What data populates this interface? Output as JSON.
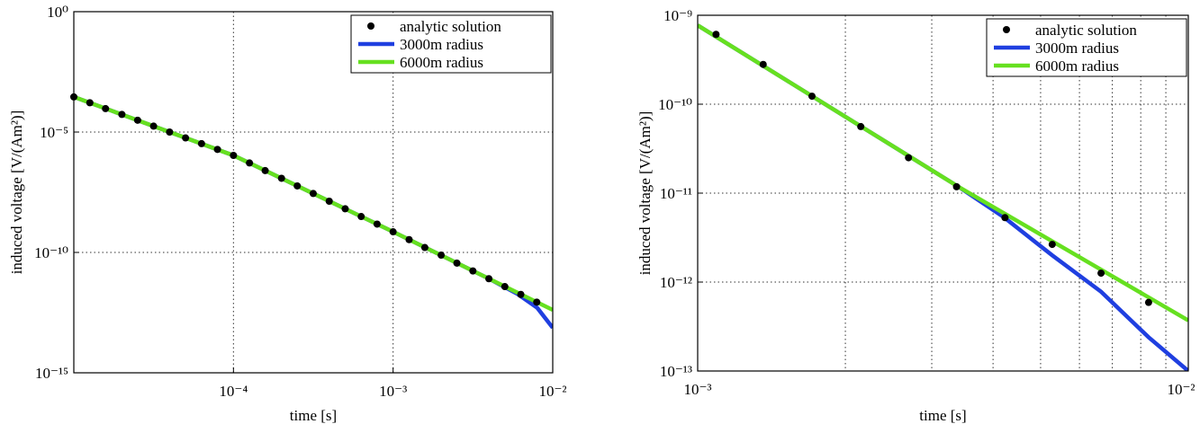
{
  "chart_data": [
    {
      "type": "line",
      "xlabel": "time [s]",
      "ylabel": "induced voltage [V/(Am²)]",
      "log_x": true,
      "log_y": true,
      "grid": true,
      "legend": "upper right",
      "xlim": [
        1e-05,
        0.01
      ],
      "xticks": [
        {
          "value": 0.0001,
          "label": "10⁻⁴"
        },
        {
          "value": 0.001,
          "label": "10⁻³"
        },
        {
          "value": 0.01,
          "label": "10⁻²"
        }
      ],
      "ylim": [
        1e-15,
        1
      ],
      "yticks": [
        {
          "value": 1e-15,
          "label": "10⁻¹⁵"
        },
        {
          "value": 1e-10,
          "label": "10⁻¹⁰"
        },
        {
          "value": 1e-05,
          "label": "10⁻⁵"
        },
        {
          "value": 1,
          "label": "10⁰"
        }
      ],
      "series": [
        {
          "name": "analytic solution",
          "color": "#000000",
          "style": "markers",
          "x": [
            1e-05,
            1.26e-05,
            1.58e-05,
            2e-05,
            2.51e-05,
            3.16e-05,
            3.98e-05,
            5.01e-05,
            6.31e-05,
            7.94e-05,
            0.0001,
            0.000126,
            0.000158,
            0.0002,
            0.000251,
            0.000316,
            0.000398,
            0.000501,
            0.000631,
            0.000794,
            0.001,
            0.00126,
            0.00158,
            0.002,
            0.00251,
            0.00316,
            0.00398,
            0.00501,
            0.00631,
            0.00794
          ],
          "values": [
            0.000288,
            0.000165,
            9.4e-05,
            5.4e-05,
            3.1e-05,
            1.76e-05,
            1e-05,
            5.7e-06,
            3.3e-06,
            1.9e-06,
            1.07e-06,
            5.2e-07,
            2.5e-07,
            1.2e-07,
            5.8e-08,
            2.8e-08,
            1.34e-08,
            6.5e-09,
            3.1e-09,
            1.5e-09,
            7.2e-10,
            3.4e-10,
            1.6e-10,
            7.7e-11,
            3.6e-11,
            1.7e-11,
            8.1e-12,
            3.8e-12,
            1.8e-12,
            8.6e-13
          ]
        },
        {
          "name": "3000m radius",
          "color": "#1f3fe0",
          "style": "line",
          "x": [
            1e-05,
            0.0001,
            0.001,
            0.004,
            0.006,
            0.008,
            0.01
          ],
          "values": [
            0.000288,
            1.07e-06,
            7.2e-10,
            8e-12,
            1.9e-12,
            5e-13,
            7.4e-14
          ]
        },
        {
          "name": "6000m radius",
          "color": "#66e020",
          "style": "line",
          "x": [
            1e-05,
            0.0001,
            0.001,
            0.01
          ],
          "values": [
            0.000288,
            1.07e-06,
            7.2e-10,
            4.1e-13
          ]
        }
      ]
    },
    {
      "type": "line",
      "xlabel": "time [s]",
      "ylabel": "induced voltage [V/(Am²)]",
      "log_x": true,
      "log_y": true,
      "grid": true,
      "legend": "upper right",
      "xlim": [
        0.001,
        0.01
      ],
      "xticks": [
        {
          "value": 0.001,
          "label": "10⁻³"
        },
        {
          "value": 0.01,
          "label": "10⁻²"
        }
      ],
      "xgrid_minor": [
        0.002,
        0.003,
        0.004,
        0.005,
        0.006,
        0.007,
        0.008,
        0.009
      ],
      "ylim": [
        1e-13,
        1e-09
      ],
      "yticks": [
        {
          "value": 1e-13,
          "label": "10⁻¹³"
        },
        {
          "value": 1e-12,
          "label": "10⁻¹²"
        },
        {
          "value": 1e-11,
          "label": "10⁻¹¹"
        },
        {
          "value": 1e-10,
          "label": "10⁻¹⁰"
        },
        {
          "value": 1e-09,
          "label": "10⁻⁹"
        }
      ],
      "series": [
        {
          "name": "analytic solution",
          "color": "#000000",
          "style": "markers",
          "x": [
            0.00109,
            0.00136,
            0.00171,
            0.00215,
            0.00269,
            0.00337,
            0.00423,
            0.00528,
            0.00664,
            0.0083
          ],
          "values": [
            6.1e-10,
            2.8e-10,
            1.23e-10,
            5.6e-11,
            2.5e-11,
            1.18e-11,
            5.3e-12,
            2.65e-12,
            1.26e-12,
            5.9e-13
          ]
        },
        {
          "name": "3000m radius",
          "color": "#1f3fe0",
          "style": "line",
          "x": [
            0.001,
            0.0034,
            0.0042,
            0.00528,
            0.00664,
            0.0083,
            0.01
          ],
          "values": [
            7.7e-10,
            1.18e-11,
            5.4e-12,
            2e-12,
            7.8e-13,
            2.4e-13,
            1e-13
          ]
        },
        {
          "name": "6000m radius",
          "color": "#66e020",
          "style": "line",
          "x": [
            0.001,
            0.0034,
            0.01
          ],
          "values": [
            7.7e-10,
            1.18e-11,
            3.7e-13
          ]
        }
      ]
    }
  ]
}
